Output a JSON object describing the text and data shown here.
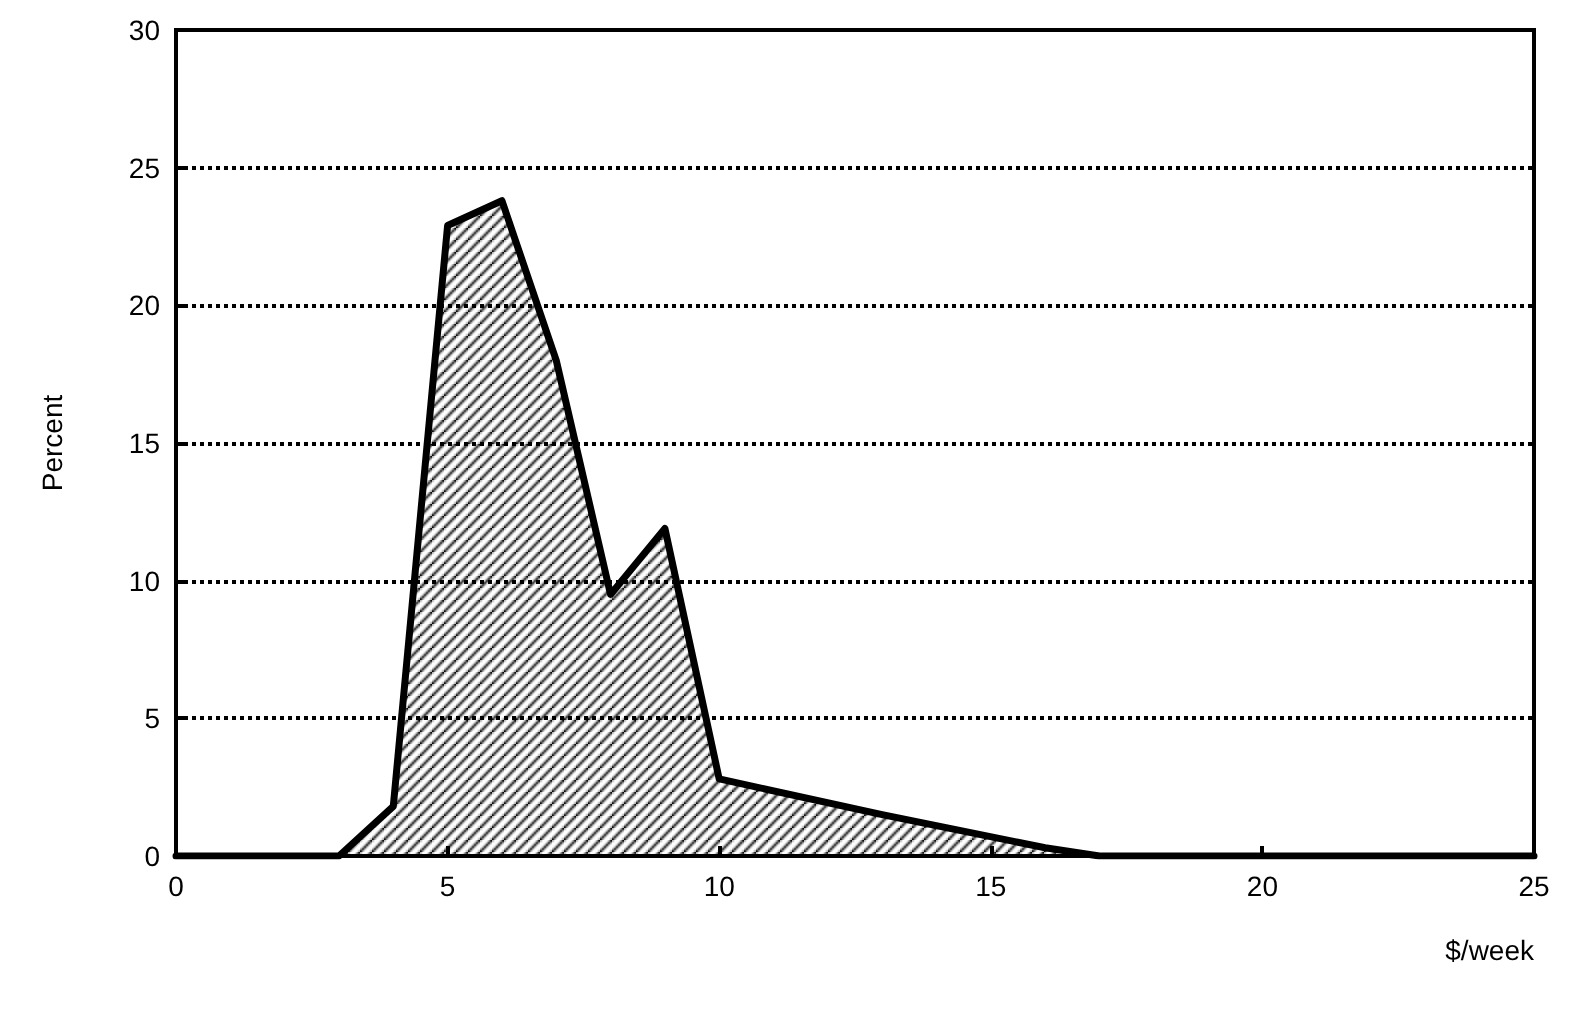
{
  "chart_data": {
    "type": "area",
    "xlabel": "$/week",
    "ylabel": "Percent",
    "x": [
      0,
      3,
      4,
      5,
      6,
      7,
      8,
      9,
      10,
      13,
      16,
      17,
      25
    ],
    "values": [
      0,
      0,
      1.8,
      22.9,
      23.8,
      18,
      9.5,
      11.9,
      2.8,
      1.5,
      0.3,
      0,
      0
    ],
    "color": "#000000",
    "xlim": [
      0,
      25
    ],
    "xticks": [
      0,
      5,
      10,
      15,
      20,
      25
    ],
    "ylim": [
      0,
      30
    ],
    "yticks": [
      0,
      5,
      10,
      15,
      20,
      25,
      30
    ],
    "grid": "y",
    "marker": "none",
    "line_style": "solid"
  }
}
